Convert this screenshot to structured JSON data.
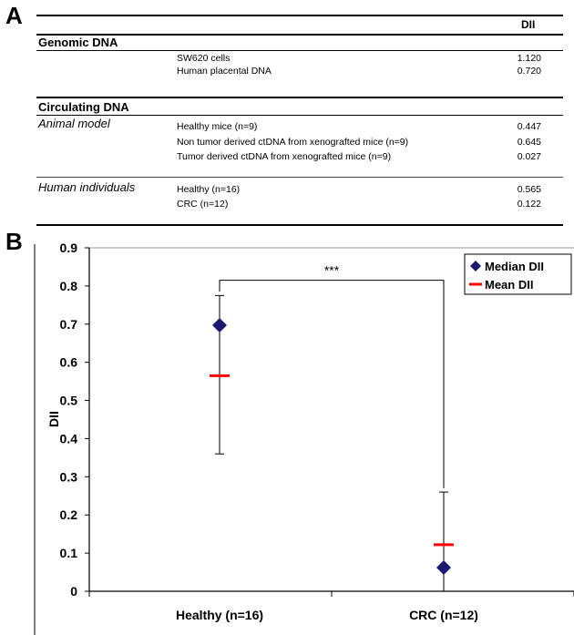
{
  "panel_a": {
    "label": "A",
    "col_header": "DII",
    "sections": [
      {
        "title": "Genomic DNA",
        "groups": [
          {
            "name": "",
            "rows": [
              {
                "label": "SW620 cells",
                "value": "1.120"
              },
              {
                "label": "Human placental DNA",
                "value": "0.720"
              }
            ]
          }
        ]
      },
      {
        "title": "Circulating DNA",
        "groups": [
          {
            "name": "Animal model",
            "rows": [
              {
                "label": "Healthy mice (n=9)",
                "value": "0.447"
              },
              {
                "label": "Non tumor derived ctDNA from xenografted mice (n=9)",
                "value": "0.645"
              },
              {
                "label": "Tumor derived ctDNA from xenografted mice (n=9)",
                "value": "0.027"
              }
            ]
          },
          {
            "name": "Human individuals",
            "rows": [
              {
                "label": "Healthy (n=16)",
                "value": "0.565"
              },
              {
                "label": "CRC (n=12)",
                "value": "0.122"
              }
            ]
          }
        ]
      }
    ]
  },
  "panel_b": {
    "label": "B"
  },
  "chart_data": {
    "type": "scatter",
    "categories": [
      "Healthy (n=16)",
      "CRC (n=12)"
    ],
    "ylabel": "DII",
    "xlabel": "",
    "ylim": [
      0,
      0.9
    ],
    "yticks": [
      "0",
      "0.1",
      "0.2",
      "0.3",
      "0.4",
      "0.5",
      "0.6",
      "0.7",
      "0.8",
      "0.9"
    ],
    "series": [
      {
        "name": "Median DII",
        "values": [
          0.697,
          0.062
        ],
        "marker": "diamond",
        "color": "#1a1a6e"
      },
      {
        "name": "Mean DII",
        "values": [
          0.565,
          0.122
        ],
        "marker": "dash",
        "color": "#ff0000"
      }
    ],
    "error_ranges": [
      {
        "category": "Healthy (n=16)",
        "low": 0.36,
        "high": 0.775
      },
      {
        "category": "CRC (n=12)",
        "low": 0.0,
        "high": 0.26
      }
    ],
    "significance": {
      "label": "***",
      "between": [
        "Healthy (n=16)",
        "CRC (n=12)"
      ]
    },
    "legend_position": "top-right",
    "grid": false
  }
}
